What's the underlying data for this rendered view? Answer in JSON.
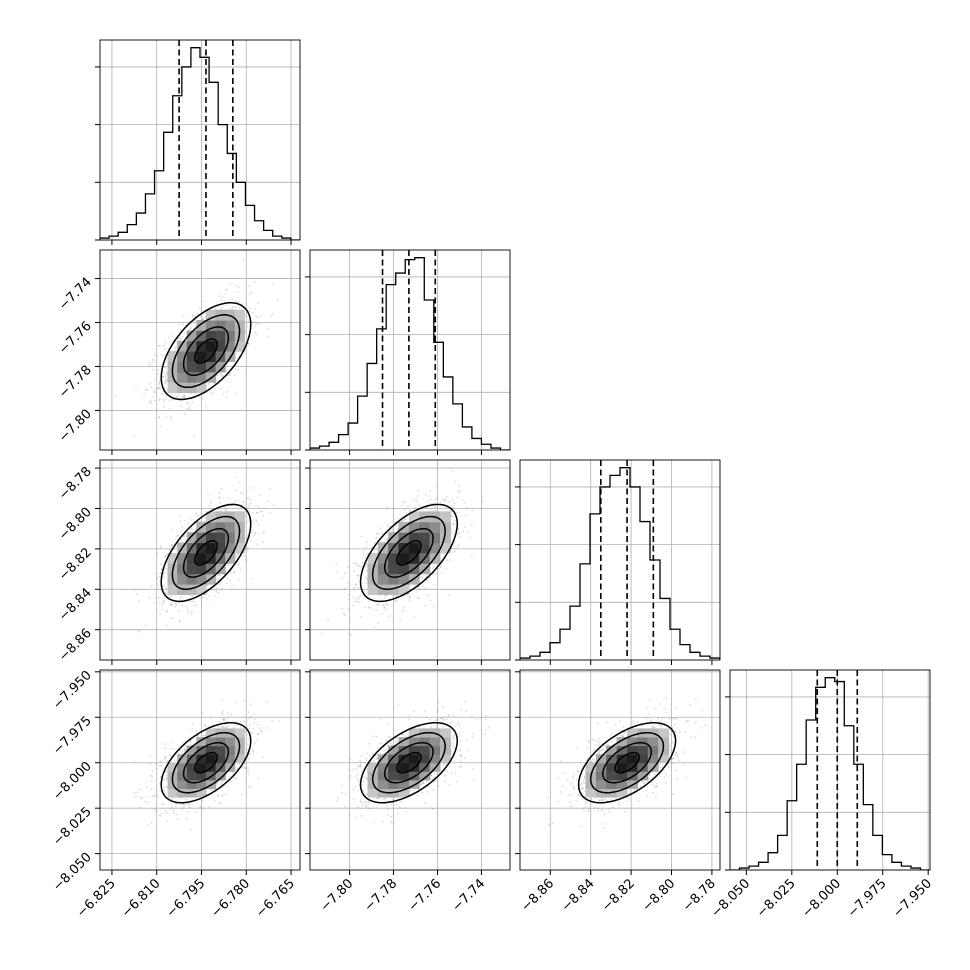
{
  "chart_data": {
    "type": "corner",
    "parameters": [
      {
        "range": [
          -6.829,
          -6.762
        ],
        "ticks": [
          -6.825,
          -6.81,
          -6.795,
          -6.78,
          -6.765
        ],
        "tick_labels": [
          "−6.825",
          "−6.810",
          "−6.795",
          "−6.780",
          "−6.765"
        ],
        "mean": -6.7935,
        "quantiles": [
          -6.8025,
          -6.7935,
          -6.7845
        ],
        "sigma": 0.0075,
        "hist_max": 1.0,
        "hist_counts": [
          0.01,
          0.02,
          0.04,
          0.08,
          0.14,
          0.24,
          0.36,
          0.56,
          0.75,
          0.9,
          1.0,
          0.95,
          0.82,
          0.6,
          0.45,
          0.3,
          0.18,
          0.1,
          0.05,
          0.02,
          0.01,
          0.0
        ]
      },
      {
        "range": [
          -7.818,
          -7.727
        ],
        "ticks": [
          -7.8,
          -7.78,
          -7.76,
          -7.74
        ],
        "tick_labels": [
          "−7.80",
          "−7.78",
          "−7.76",
          "−7.74"
        ],
        "mean": -7.773,
        "quantiles": [
          -7.785,
          -7.773,
          -7.761
        ],
        "sigma": 0.011,
        "hist_max": 1.0,
        "hist_counts": [
          0.01,
          0.02,
          0.04,
          0.08,
          0.14,
          0.28,
          0.45,
          0.63,
          0.86,
          0.92,
          0.99,
          1.0,
          0.78,
          0.56,
          0.38,
          0.24,
          0.12,
          0.06,
          0.03,
          0.01,
          0.0
        ]
      },
      {
        "range": [
          -8.875,
          -8.776
        ],
        "ticks": [
          -8.86,
          -8.84,
          -8.82,
          -8.8,
          -8.78
        ],
        "tick_labels": [
          "−8.86",
          "−8.84",
          "−8.82",
          "−8.80",
          "−8.78"
        ],
        "mean": -8.822,
        "quantiles": [
          -8.835,
          -8.822,
          -8.809
        ],
        "sigma": 0.012,
        "hist_max": 1.0,
        "hist_counts": [
          0.01,
          0.02,
          0.04,
          0.09,
          0.16,
          0.28,
          0.5,
          0.76,
          0.9,
          0.96,
          1.0,
          0.9,
          0.72,
          0.52,
          0.32,
          0.16,
          0.08,
          0.04,
          0.02,
          0.01
        ]
      },
      {
        "range": [
          -8.059,
          -7.949
        ],
        "ticks": [
          -8.05,
          -8.025,
          -8.0,
          -7.975,
          -7.95
        ],
        "tick_labels": [
          "−8.050",
          "−8.025",
          "−8.000",
          "−7.975",
          "−7.950"
        ],
        "mean": -8.0,
        "quantiles": [
          -8.011,
          -8.0,
          -7.989
        ],
        "sigma": 0.011,
        "hist_max": 1.0,
        "hist_counts": [
          0.0,
          0.01,
          0.02,
          0.04,
          0.09,
          0.18,
          0.36,
          0.55,
          0.78,
          0.95,
          1.0,
          0.98,
          0.75,
          0.55,
          0.34,
          0.18,
          0.08,
          0.04,
          0.02,
          0.01,
          0.0
        ]
      }
    ],
    "correlations": [
      [
        1.0,
        0.55,
        0.6,
        0.55
      ],
      [
        0.55,
        1.0,
        0.6,
        0.55
      ],
      [
        0.6,
        0.6,
        1.0,
        0.55
      ],
      [
        0.55,
        0.55,
        0.55,
        1.0
      ]
    ],
    "grid": true,
    "quantile_line_style": "dashed",
    "contour_levels_sigma": [
      0.5,
      1.0,
      1.5,
      2.0
    ]
  }
}
